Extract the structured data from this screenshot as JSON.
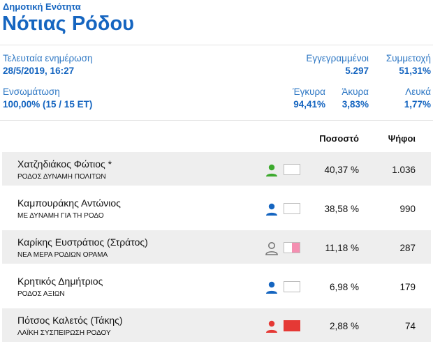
{
  "header": {
    "kicker": "Δημοτική Ενότητα",
    "title": "Νότιας Ρόδου"
  },
  "stats": {
    "last_update_label": "Τελευταία ενημέρωση",
    "last_update_value": "28/5/2019, 16:27",
    "registered_label": "Εγγεγραμμένοι",
    "registered_value": "5.297",
    "turnout_label": "Συμμετοχή",
    "turnout_value": "51,31%",
    "integration_label": "Ενσωμάτωση",
    "integration_value": "100,00% (15 / 15 ΕΤ)",
    "valid_label": "Έγκυρα",
    "valid_value": "94,41%",
    "invalid_label": "Άκυρα",
    "invalid_value": "3,83%",
    "blank_label": "Λευκά",
    "blank_value": "1,77%"
  },
  "table": {
    "col_percent": "Ποσοστό",
    "col_votes": "Ψήφοι",
    "rows": [
      {
        "name": "Χατζηδιάκος Φώτιος *",
        "party": "ΡΟΔΟΣ ΔΥΝΑΜΗ ΠΟΛΙΤΩΝ",
        "percent": "40,37 %",
        "votes": "1.036",
        "icon_color": "#3daa2e",
        "icon_style": "solid",
        "swatch_color": "#ffffff",
        "swatch_split": false
      },
      {
        "name": "Καμπουράκης Αντώνιος",
        "party": "ΜΕ ΔΥΝΑΜΗ ΓΙΑ ΤΗ ΡΟΔΟ",
        "percent": "38,58 %",
        "votes": "990",
        "icon_color": "#1565c0",
        "icon_style": "solid",
        "swatch_color": "#ffffff",
        "swatch_split": false
      },
      {
        "name": "Καρίκης Ευστράτιος (Στράτος)",
        "party": "ΝΕΑ ΜΕΡΑ ΡΟΔΙΩΝ ΟΡΑΜΑ",
        "percent": "11,18 %",
        "votes": "287",
        "icon_color": "#777777",
        "icon_style": "outline",
        "swatch_color": "#f48fb1",
        "swatch_split": true
      },
      {
        "name": "Κρητικός Δημήτριος",
        "party": "ΡΟΔΟΣ ΑΞΙΩΝ",
        "percent": "6,98 %",
        "votes": "179",
        "icon_color": "#1565c0",
        "icon_style": "solid",
        "swatch_color": "#ffffff",
        "swatch_split": false
      },
      {
        "name": "Πότσος Καλετός (Τάκης)",
        "party": "ΛΑΪΚΗ ΣΥΣΠΕΙΡΩΣΗ ΡΟΔΟΥ",
        "percent": "2,88 %",
        "votes": "74",
        "icon_color": "#e53935",
        "icon_style": "solid",
        "swatch_color": "#e53935",
        "swatch_split": false
      }
    ]
  }
}
